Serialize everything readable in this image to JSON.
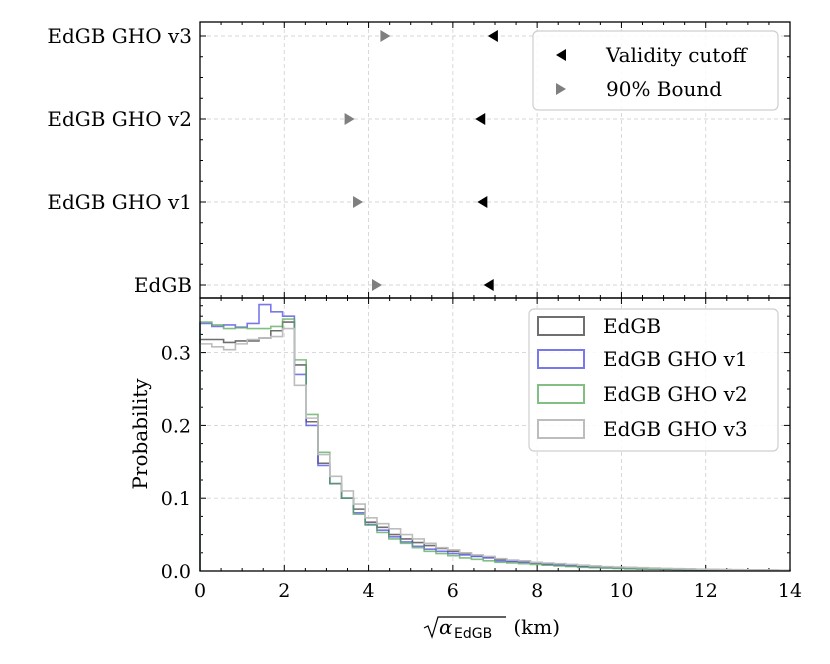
{
  "chart_data": [
    {
      "type": "scatter",
      "panel": "top",
      "categories": [
        "EdGB",
        "EdGB GHO v1",
        "EdGB GHO v2",
        "EdGB GHO v3"
      ],
      "series": [
        {
          "name": "Validity cutoff",
          "marker": "left-triangle",
          "color": "#000000",
          "values": [
            6.85,
            6.7,
            6.65,
            6.95
          ]
        },
        {
          "name": "90% Bound",
          "marker": "right-triangle",
          "color": "#7f7f7f",
          "values": [
            4.2,
            3.75,
            3.55,
            4.4
          ]
        }
      ],
      "xlim": [
        0,
        14
      ],
      "grid": true,
      "legend_position": "top-right"
    },
    {
      "type": "histogram",
      "panel": "bottom",
      "xlabel_prefix": "α",
      "xlabel_sub": "EdGB",
      "xlabel_suffix": " (km)",
      "ylabel": "Probability",
      "xlim": [
        0,
        14
      ],
      "ylim": [
        0,
        0.375
      ],
      "xticks": [
        "0",
        "2",
        "4",
        "6",
        "8",
        "10",
        "12",
        "14"
      ],
      "yticks": [
        "0.0",
        "0.1",
        "0.2",
        "0.3"
      ],
      "bin_width": 0.28,
      "grid": true,
      "legend_position": "top-right",
      "series": [
        {
          "name": "EdGB",
          "color": "#6f6f6f",
          "values": [
            0.318,
            0.318,
            0.314,
            0.316,
            0.316,
            0.32,
            0.33,
            0.342,
            0.283,
            0.205,
            0.148,
            0.12,
            0.1,
            0.085,
            0.067,
            0.06,
            0.05,
            0.044,
            0.039,
            0.035,
            0.031,
            0.027,
            0.024,
            0.021,
            0.019,
            0.016,
            0.014,
            0.013,
            0.011,
            0.01,
            0.009,
            0.008,
            0.007,
            0.006,
            0.0055,
            0.005,
            0.0045,
            0.004,
            0.0035,
            0.003,
            0.0028,
            0.0025,
            0.0022,
            0.002,
            0.0018,
            0.0016,
            0.0015,
            0.0013,
            0.0012,
            0.001
          ]
        },
        {
          "name": "EdGB GHO v1",
          "color": "#4b4be6",
          "values": [
            0.34,
            0.336,
            0.338,
            0.335,
            0.34,
            0.366,
            0.356,
            0.35,
            0.27,
            0.2,
            0.145,
            0.12,
            0.1,
            0.08,
            0.064,
            0.056,
            0.047,
            0.04,
            0.034,
            0.03,
            0.027,
            0.024,
            0.022,
            0.02,
            0.018,
            0.014,
            0.013,
            0.012,
            0.011,
            0.009,
            0.008,
            0.007,
            0.006,
            0.005,
            0.0045,
            0.004,
            0.0035,
            0.003,
            0.0028,
            0.0025,
            0.0022,
            0.002,
            0.0018,
            0.0016,
            0.0015,
            0.0013,
            0.0012,
            0.0011,
            0.001,
            0.0009
          ]
        },
        {
          "name": "EdGB GHO v2",
          "color": "#5aaa5a",
          "values": [
            0.342,
            0.338,
            0.333,
            0.334,
            0.333,
            0.333,
            0.336,
            0.346,
            0.29,
            0.215,
            0.163,
            0.12,
            0.1,
            0.078,
            0.063,
            0.053,
            0.044,
            0.038,
            0.032,
            0.027,
            0.024,
            0.021,
            0.018,
            0.016,
            0.014,
            0.012,
            0.011,
            0.01,
            0.009,
            0.008,
            0.007,
            0.006,
            0.005,
            0.0045,
            0.004,
            0.0035,
            0.003,
            0.0027,
            0.0024,
            0.0021,
            0.0019,
            0.0017,
            0.0015,
            0.0013,
            0.0012,
            0.0011,
            0.001,
            0.0009,
            0.0008,
            0.0007
          ]
        },
        {
          "name": "EdGB GHO v3",
          "color": "#bdbdbd",
          "values": [
            0.312,
            0.308,
            0.304,
            0.312,
            0.318,
            0.32,
            0.322,
            0.333,
            0.255,
            0.21,
            0.16,
            0.13,
            0.11,
            0.092,
            0.073,
            0.065,
            0.058,
            0.05,
            0.044,
            0.038,
            0.032,
            0.029,
            0.025,
            0.022,
            0.02,
            0.017,
            0.015,
            0.014,
            0.012,
            0.011,
            0.01,
            0.009,
            0.008,
            0.007,
            0.006,
            0.0055,
            0.005,
            0.0045,
            0.004,
            0.0036,
            0.0032,
            0.0028,
            0.0025,
            0.0022,
            0.002,
            0.0018,
            0.0016,
            0.0014,
            0.0013,
            0.0012
          ]
        }
      ]
    }
  ]
}
